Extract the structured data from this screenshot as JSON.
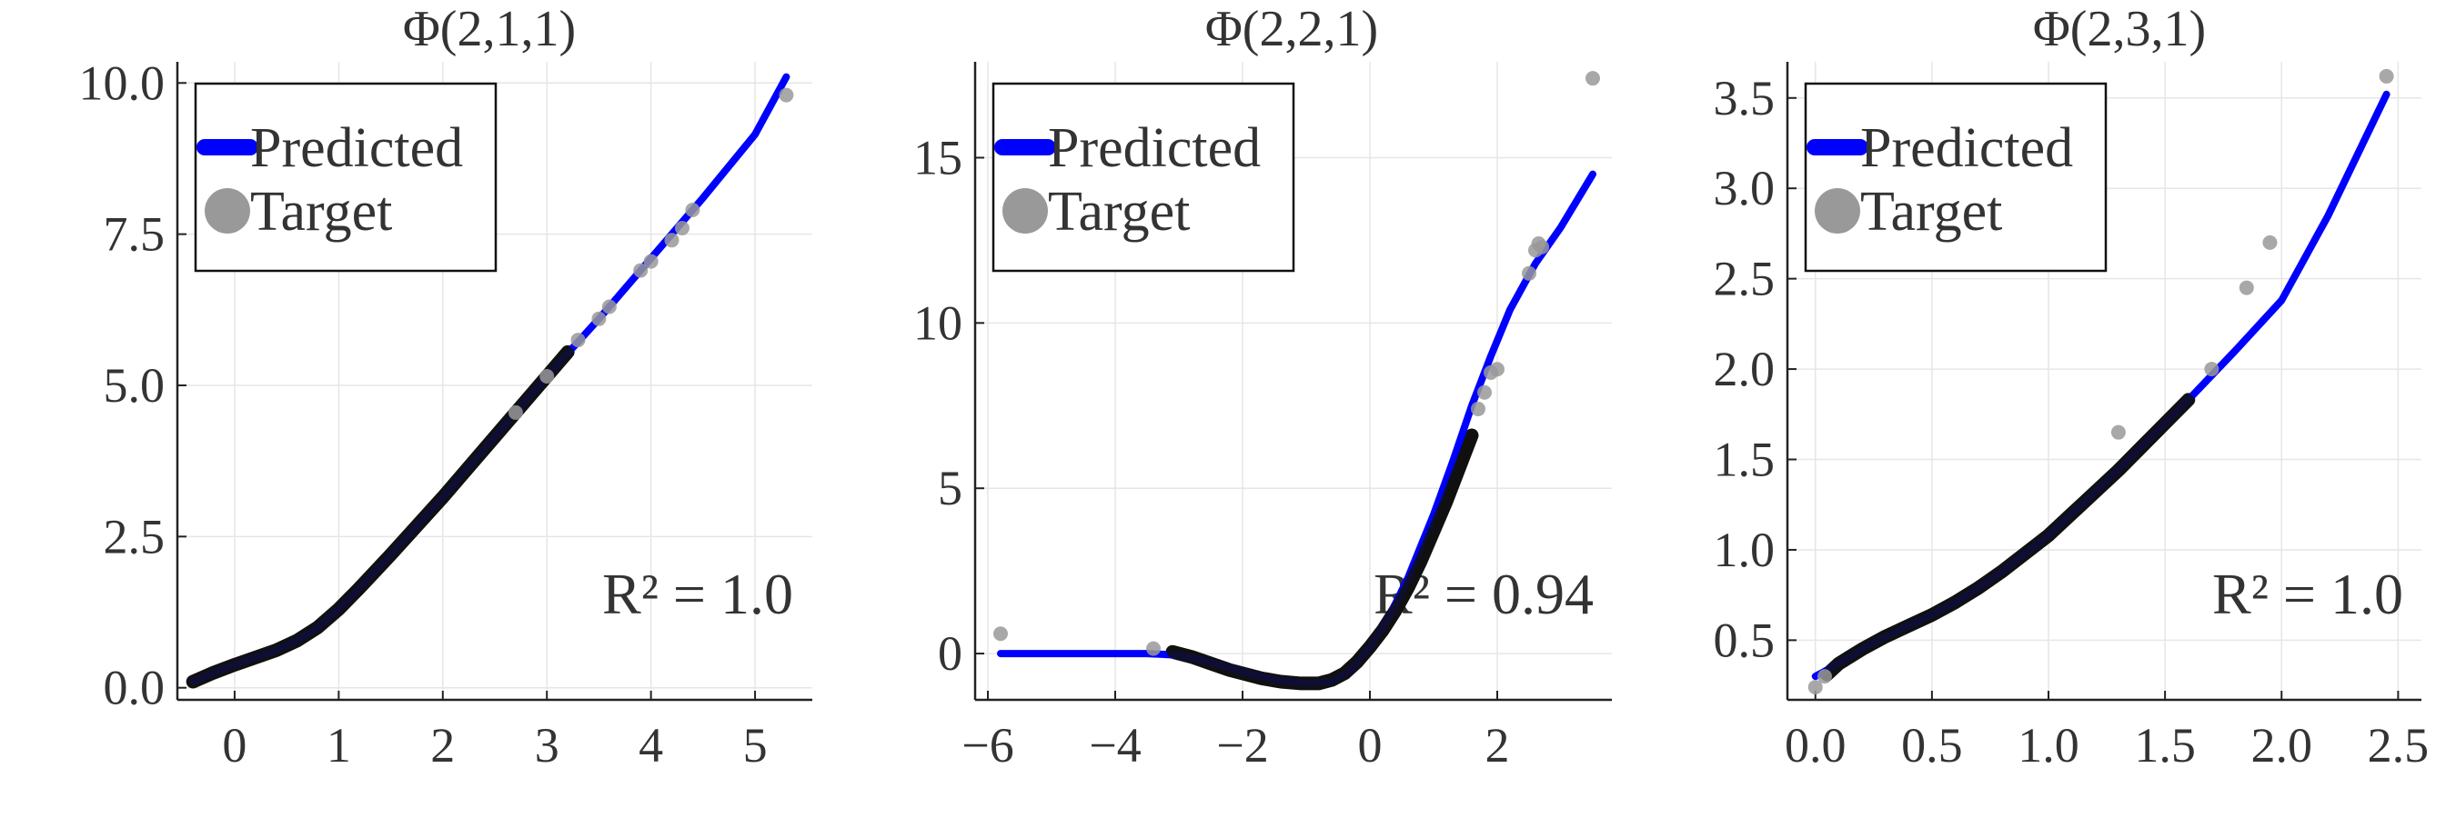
{
  "colors": {
    "predicted": "#0000ff",
    "target_scatter": "#999999",
    "target_dense": "#111111",
    "grid": "#e6e6e6",
    "axis": "#222222",
    "background": "#ffffff"
  },
  "legend": {
    "predicted": "Predicted",
    "target": "Target",
    "placement": "top-left"
  },
  "chart_data": [
    {
      "type": "line",
      "title": "Φ(2,1,1)",
      "xlabel": "",
      "ylabel": "",
      "xlim": [
        -0.55,
        5.55
      ],
      "ylim": [
        -0.2,
        10.35
      ],
      "xticks": [
        0,
        1,
        2,
        3,
        4,
        5
      ],
      "xtick_labels": [
        "0",
        "1",
        "2",
        "3",
        "4",
        "5"
      ],
      "yticks": [
        0,
        2.5,
        5,
        7.5,
        10
      ],
      "ytick_labels": [
        "0.0",
        "2.5",
        "5.0",
        "7.5",
        "10.0"
      ],
      "r2": "R² = 1.0",
      "grid": true,
      "series": [
        {
          "name": "Predicted",
          "kind": "line",
          "x": [
            -0.4,
            -0.2,
            0,
            0.2,
            0.4,
            0.6,
            0.8,
            1.0,
            1.2,
            1.5,
            2.0,
            2.5,
            3.0,
            3.5,
            4.0,
            4.5,
            5.0,
            5.3
          ],
          "y": [
            0.1,
            0.25,
            0.38,
            0.5,
            0.62,
            0.78,
            1.0,
            1.3,
            1.65,
            2.2,
            3.15,
            4.15,
            5.15,
            6.1,
            7.1,
            8.1,
            9.15,
            10.1
          ]
        },
        {
          "name": "Target",
          "kind": "scatter",
          "dense_x": [
            -0.4,
            -0.2,
            0,
            0.2,
            0.4,
            0.6,
            0.8,
            1.0,
            1.2,
            1.5,
            2.0,
            2.5,
            2.8,
            3.0,
            3.2
          ],
          "dense_y": [
            0.1,
            0.25,
            0.38,
            0.5,
            0.62,
            0.78,
            1.0,
            1.3,
            1.65,
            2.2,
            3.15,
            4.15,
            4.75,
            5.15,
            5.55
          ],
          "x": [
            2.7,
            3.0,
            3.3,
            3.5,
            3.6,
            3.9,
            4.0,
            4.2,
            4.3,
            4.4,
            5.3
          ],
          "y": [
            4.55,
            5.15,
            5.75,
            6.1,
            6.3,
            6.9,
            7.05,
            7.4,
            7.6,
            7.9,
            9.8
          ]
        }
      ]
    },
    {
      "type": "line",
      "title": "Φ(2,2,1)",
      "xlabel": "",
      "ylabel": "",
      "xlim": [
        -6.2,
        3.8
      ],
      "ylim": [
        -1.4,
        17.9
      ],
      "xticks": [
        -6,
        -4,
        -2,
        0,
        2
      ],
      "xtick_labels": [
        "−6",
        "−4",
        "−2",
        "0",
        "2"
      ],
      "yticks": [
        0,
        5,
        10,
        15
      ],
      "ytick_labels": [
        "0",
        "5",
        "10",
        "15"
      ],
      "r2": "R² = 0.94",
      "grid": true,
      "series": [
        {
          "name": "Predicted",
          "kind": "line",
          "x": [
            -5.8,
            -3.5,
            -3.0,
            -2.5,
            -2.0,
            -1.5,
            -1.0,
            -0.6,
            -0.3,
            0,
            0.3,
            0.6,
            1.0,
            1.3,
            1.6,
            1.9,
            2.2,
            2.6,
            3.0,
            3.5
          ],
          "y": [
            0,
            0,
            -0.05,
            -0.25,
            -0.55,
            -0.8,
            -0.9,
            -0.85,
            -0.5,
            0.2,
            1.1,
            2.3,
            4.2,
            5.8,
            7.5,
            9.0,
            10.4,
            11.8,
            12.9,
            14.5
          ]
        },
        {
          "name": "Target",
          "kind": "scatter",
          "dense_x": [
            -3.1,
            -2.8,
            -2.5,
            -2.2,
            -2.0,
            -1.7,
            -1.4,
            -1.1,
            -0.8,
            -0.6,
            -0.4,
            -0.2,
            0,
            0.2,
            0.4,
            0.6,
            0.8,
            1.0,
            1.2,
            1.4,
            1.6
          ],
          "dense_y": [
            0.05,
            -0.1,
            -0.3,
            -0.5,
            -0.6,
            -0.75,
            -0.85,
            -0.9,
            -0.9,
            -0.8,
            -0.6,
            -0.25,
            0.2,
            0.7,
            1.3,
            2.0,
            2.8,
            3.7,
            4.6,
            5.6,
            6.6
          ],
          "x": [
            -5.8,
            -3.4,
            1.7,
            1.8,
            1.9,
            2.0,
            2.5,
            2.6,
            2.65,
            2.7,
            3.5
          ],
          "y": [
            0.6,
            0.15,
            7.4,
            7.9,
            8.5,
            8.6,
            11.5,
            12.2,
            12.4,
            12.3,
            17.4
          ]
        }
      ]
    },
    {
      "type": "line",
      "title": "Φ(2,3,1)",
      "xlabel": "",
      "ylabel": "",
      "xlim": [
        -0.12,
        2.6
      ],
      "ylim": [
        0.17,
        3.7
      ],
      "xticks": [
        0,
        0.5,
        1.0,
        1.5,
        2.0,
        2.5
      ],
      "xtick_labels": [
        "0.0",
        "0.5",
        "1.0",
        "1.5",
        "2.0",
        "2.5"
      ],
      "yticks": [
        0.5,
        1.0,
        1.5,
        2.0,
        2.5,
        3.0,
        3.5
      ],
      "ytick_labels": [
        "0.5",
        "1.0",
        "1.5",
        "2.0",
        "2.5",
        "3.0",
        "3.5"
      ],
      "r2": "R² = 1.0",
      "grid": true,
      "series": [
        {
          "name": "Predicted",
          "kind": "line",
          "x": [
            0,
            0.1,
            0.2,
            0.3,
            0.4,
            0.5,
            0.6,
            0.7,
            0.8,
            0.9,
            1.0,
            1.2,
            1.4,
            1.6,
            1.8,
            2.0,
            2.2,
            2.45
          ],
          "y": [
            0.3,
            0.37,
            0.45,
            0.52,
            0.58,
            0.64,
            0.71,
            0.79,
            0.88,
            0.98,
            1.08,
            1.32,
            1.57,
            1.83,
            2.1,
            2.38,
            2.85,
            3.52
          ]
        },
        {
          "name": "Target",
          "kind": "scatter",
          "dense_x": [
            0.05,
            0.1,
            0.2,
            0.3,
            0.4,
            0.5,
            0.6,
            0.7,
            0.8,
            0.9,
            1.0,
            1.1,
            1.2,
            1.3,
            1.4,
            1.5,
            1.6
          ],
          "dense_y": [
            0.31,
            0.37,
            0.45,
            0.52,
            0.58,
            0.64,
            0.71,
            0.79,
            0.88,
            0.98,
            1.08,
            1.2,
            1.32,
            1.44,
            1.57,
            1.7,
            1.83
          ],
          "x": [
            0,
            0.04,
            1.3,
            1.7,
            1.85,
            1.95,
            2.45
          ],
          "y": [
            0.24,
            0.3,
            1.65,
            2.0,
            2.45,
            2.7,
            3.62
          ]
        }
      ]
    }
  ]
}
